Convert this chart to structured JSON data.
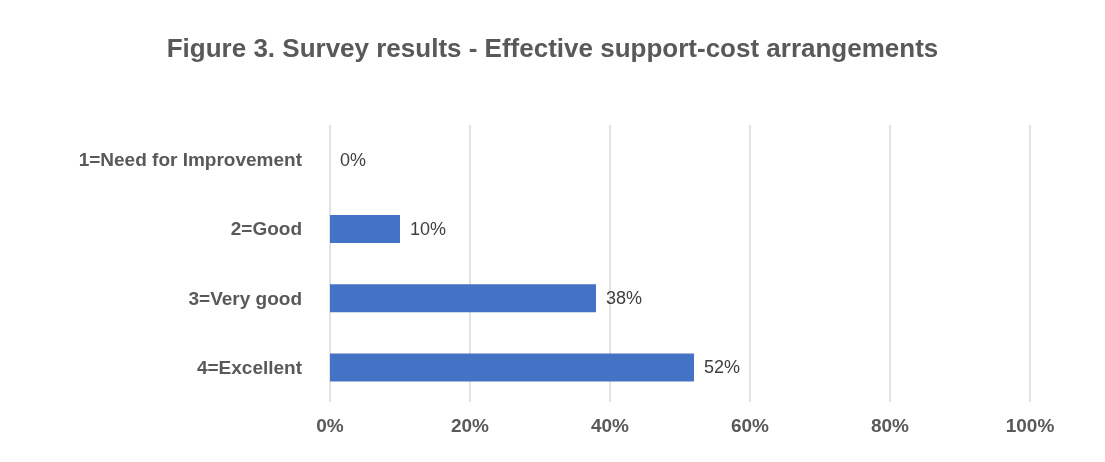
{
  "chart_data": {
    "type": "bar",
    "orientation": "horizontal",
    "title": "Figure 3. Survey results - Effective support-cost arrangements",
    "categories": [
      "1=Need for Improvement",
      "2=Good",
      "3=Very good",
      "4=Excellent"
    ],
    "values": [
      0,
      10,
      38,
      52
    ],
    "color": "#4472c4",
    "value_labels": [
      "0%",
      "10%",
      "38%",
      "52%"
    ],
    "xlim": [
      0,
      100
    ],
    "xticks": [
      {
        "value": 0,
        "label": "0%"
      },
      {
        "value": 20,
        "label": "20%"
      },
      {
        "value": 40,
        "label": "40%"
      },
      {
        "value": 60,
        "label": "60%"
      },
      {
        "value": 80,
        "label": "80%"
      },
      {
        "value": 100,
        "label": "100%"
      }
    ],
    "grid": "x"
  }
}
